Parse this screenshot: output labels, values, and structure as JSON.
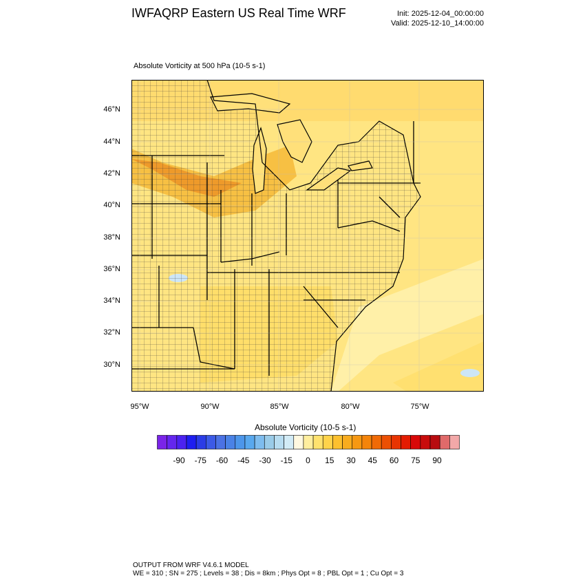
{
  "header": {
    "title": "IWFAQRP Eastern US Real Time WRF",
    "init": "Init: 2025-12-04_00:00:00",
    "valid": "Valid: 2025-12-10_14:00:00"
  },
  "map": {
    "field_title": "Absolute Vorticity at 500 hPa   (10-5 s-1)",
    "lat_labels": [
      "46°N",
      "44°N",
      "42°N",
      "40°N",
      "38°N",
      "36°N",
      "34°N",
      "32°N",
      "30°N"
    ],
    "lon_labels": [
      "95°W",
      "90°W",
      "85°W",
      "80°W",
      "75°W"
    ]
  },
  "colorbar": {
    "title": "Absolute Vorticity  (10-5 s-1)",
    "labels": [
      "-90",
      "-75",
      "-60",
      "-45",
      "-30",
      "-15",
      "0",
      "15",
      "30",
      "45",
      "60",
      "75",
      "90"
    ],
    "colors": [
      "#7a24e8",
      "#6426ee",
      "#4b22f0",
      "#1e1ef0",
      "#2b3ce6",
      "#3c5ae6",
      "#4b72e4",
      "#4a82e6",
      "#4d96ea",
      "#59a8ee",
      "#7ebcee",
      "#9acbe8",
      "#b7dcf0",
      "#d2ebf6",
      "#fff8e0",
      "#ffee9e",
      "#ffe26e",
      "#ffd34a",
      "#fcc02e",
      "#f8ac1e",
      "#f69812",
      "#f4840a",
      "#f06a06",
      "#ec5004",
      "#e83402",
      "#e41c02",
      "#d80808",
      "#c80c0c",
      "#b80c10",
      "#e06a6a",
      "#f2a8a8"
    ]
  },
  "footer": {
    "line1": "OUTPUT FROM WRF V4.6.1 MODEL",
    "line2": "WE = 310 ; SN = 275 ; Levels = 38 ; Dis = 8km ; Phys Opt = 8 ; PBL Opt = 1 ; Cu Opt = 3"
  }
}
